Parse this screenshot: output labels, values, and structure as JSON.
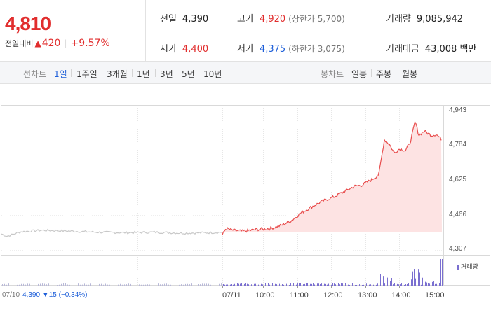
{
  "price": {
    "current": "4,810",
    "change_label": "전일대비",
    "change_arrow": "▲",
    "change": "420",
    "change_pct": "+9.57%"
  },
  "stats": {
    "prev_close": {
      "label": "전일",
      "value": "4,390"
    },
    "open": {
      "label": "시가",
      "value": "4,400"
    },
    "high": {
      "label": "고가",
      "value": "4,920",
      "sub": "(상한가 5,700)"
    },
    "low": {
      "label": "저가",
      "value": "4,375",
      "sub": "(하한가 3,075)"
    },
    "volume": {
      "label": "거래량",
      "value": "9,085,942"
    },
    "amount": {
      "label": "거래대금",
      "value": "43,008 백만"
    }
  },
  "tabs": {
    "line_label": "선차트",
    "line_items": [
      "1일",
      "1주일",
      "3개월",
      "1년",
      "3년",
      "5년",
      "10년"
    ],
    "active": "1일",
    "candle_label": "봉차트",
    "candle_items": [
      "일봉",
      "주봉",
      "월봉"
    ]
  },
  "chart_data": {
    "type": "line",
    "y_ticks": [
      "4,943",
      "4,784",
      "4,625",
      "4,466",
      "4,307"
    ],
    "ylim": [
      4307,
      4943
    ],
    "x_ticks": [
      "07/10",
      "07/11",
      "10:00",
      "11:00",
      "12:00",
      "13:00",
      "14:00",
      "15:00"
    ],
    "prev_day_line_color": "#c8c8c8",
    "today_line_color": "#e84c4c",
    "today_fill_color": "#fde3e3",
    "prev_close_value": 4390,
    "volume_legend": "거래량",
    "volume_color": "#7a6fd0",
    "prev_day_info": {
      "date": "07/10",
      "text": "4,390 ▼15 (−0.34%)"
    }
  },
  "colors": {
    "up": "#e12d2d",
    "down": "#1e5fd9",
    "active_tab": "#1e5fd9"
  }
}
